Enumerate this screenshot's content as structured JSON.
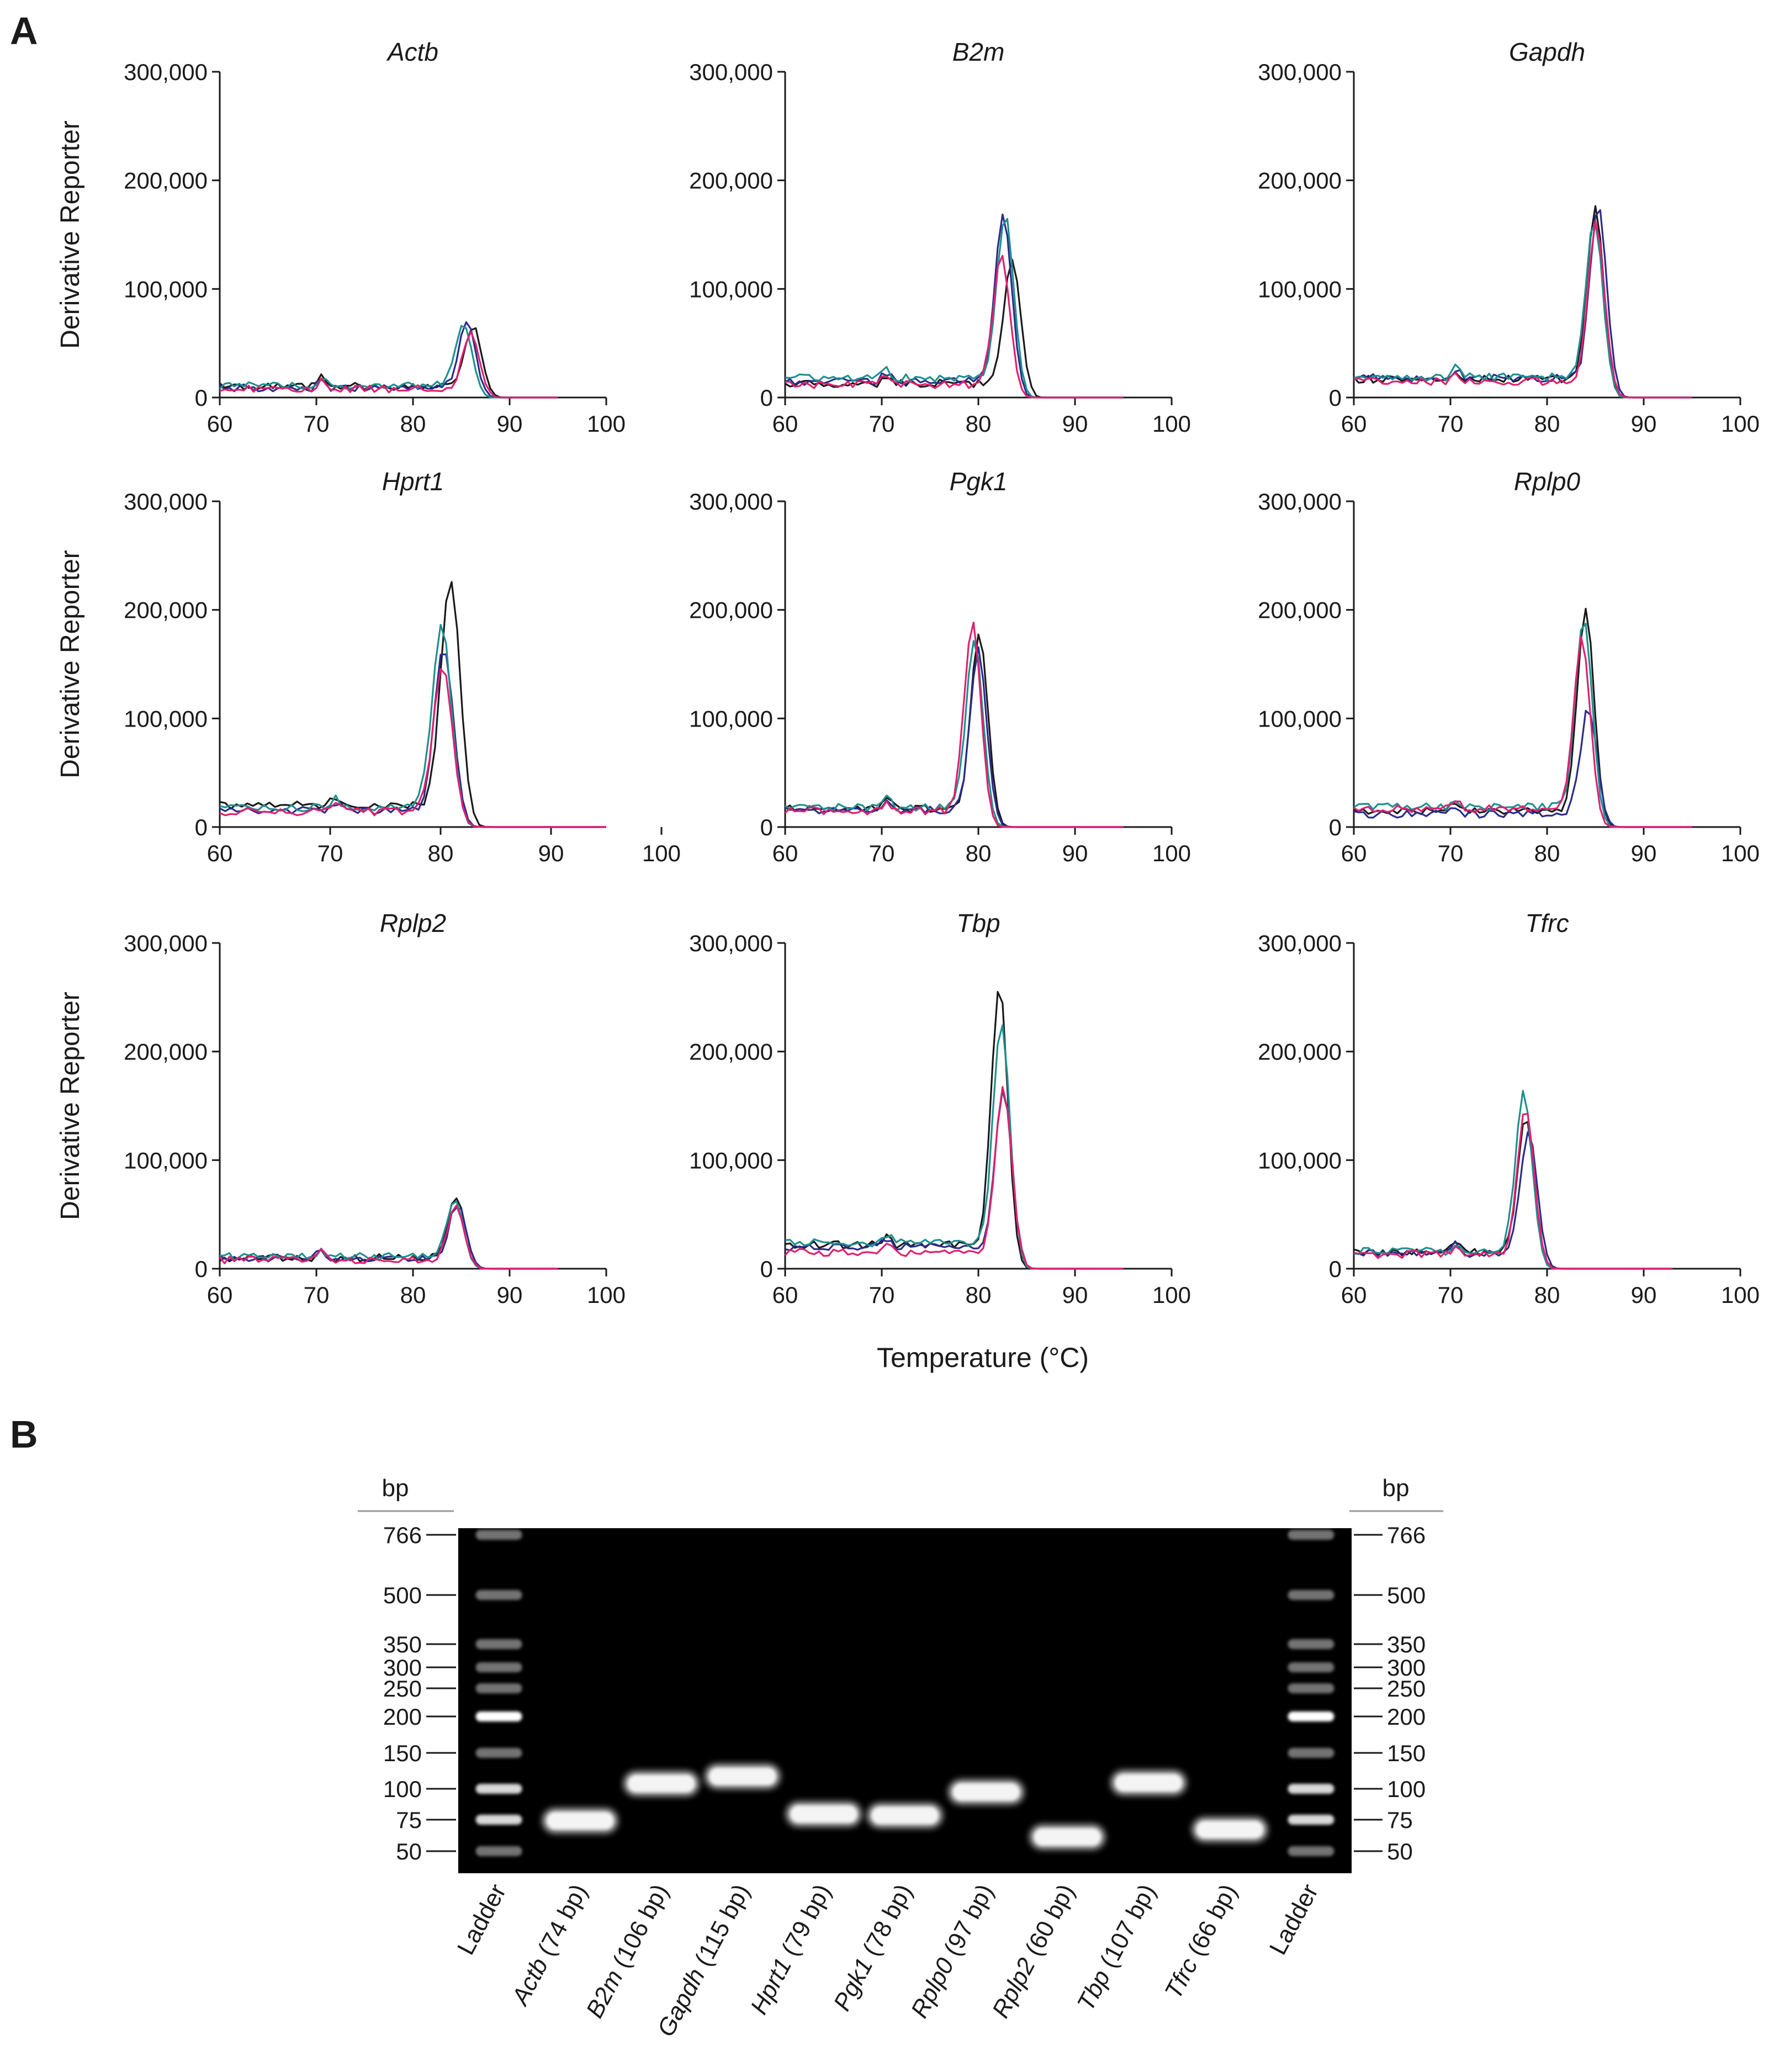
{
  "figure": {
    "panel_a_label": "A",
    "panel_b_label": "B"
  },
  "panel_a": {
    "ylabel": "Derivative  Reporter",
    "xlabel": "Temperature (°C)",
    "y_ticks": [
      "0",
      "100,000",
      "200,000",
      "300,000"
    ],
    "x_ticks": [
      "60",
      "70",
      "80",
      "90",
      "100"
    ],
    "series_colors": [
      "#1a1a1a",
      "#2b2b8a",
      "#1f8f8f",
      "#e0206e"
    ]
  },
  "chart_data": [
    {
      "type": "line",
      "title": "Actb",
      "xlim": [
        60,
        100
      ],
      "ylim": [
        0,
        300000
      ],
      "peak_x": [
        86.2,
        85.6,
        85.2,
        86.0
      ],
      "peak_y": [
        58000,
        62000,
        60000,
        52000
      ],
      "baseline": [
        10000,
        9000,
        11000,
        8000
      ],
      "end_x": 95
    },
    {
      "type": "line",
      "title": "B2m",
      "xlim": [
        60,
        100
      ],
      "ylim": [
        0,
        300000
      ],
      "peak_x": [
        83.5,
        82.6,
        82.8,
        82.4
      ],
      "peak_y": [
        118000,
        158000,
        155000,
        120000
      ],
      "baseline": [
        13000,
        15000,
        18000,
        12000
      ],
      "end_x": 95
    },
    {
      "type": "line",
      "title": "Gapdh",
      "xlim": [
        60,
        100
      ],
      "ylim": [
        0,
        300000
      ],
      "peak_x": [
        85.0,
        85.3,
        84.9,
        85.1
      ],
      "peak_y": [
        160000,
        165000,
        150000,
        148000
      ],
      "baseline": [
        17000,
        18000,
        19000,
        15000
      ],
      "end_x": 95
    },
    {
      "type": "line",
      "title": "Hprt1",
      "xlim": [
        60,
        95
      ],
      "ylim": [
        0,
        300000
      ],
      "peak_x": [
        80.9,
        80.3,
        80.1,
        80.2
      ],
      "peak_y": [
        215000,
        155000,
        175000,
        140000
      ],
      "baseline": [
        20000,
        15000,
        18000,
        14000
      ],
      "end_x": 95
    },
    {
      "type": "line",
      "title": "Pgk1",
      "xlim": [
        60,
        100
      ],
      "ylim": [
        0,
        300000
      ],
      "peak_x": [
        80.1,
        80.0,
        79.6,
        79.4
      ],
      "peak_y": [
        168000,
        150000,
        160000,
        178000
      ],
      "baseline": [
        17000,
        16000,
        18000,
        15000
      ],
      "end_x": 95
    },
    {
      "type": "line",
      "title": "Rplp0",
      "xlim": [
        60,
        100
      ],
      "ylim": [
        0,
        300000
      ],
      "peak_x": [
        84.0,
        84.3,
        83.8,
        83.6
      ],
      "peak_y": [
        192000,
        100000,
        178000,
        160000
      ],
      "baseline": [
        15000,
        12000,
        19000,
        17000
      ],
      "end_x": 95
    },
    {
      "type": "line",
      "title": "Rplp2",
      "xlim": [
        60,
        100
      ],
      "ylim": [
        0,
        300000
      ],
      "peak_x": [
        84.5,
        84.6,
        84.3,
        84.4
      ],
      "peak_y": [
        58000,
        52000,
        55000,
        50000
      ],
      "baseline": [
        10000,
        9000,
        11000,
        8000
      ],
      "end_x": 95
    },
    {
      "type": "line",
      "title": "Tbp",
      "xlim": [
        60,
        100
      ],
      "ylim": [
        0,
        300000
      ],
      "peak_x": [
        82.2,
        82.6,
        82.4,
        82.6
      ],
      "peak_y": [
        242000,
        150000,
        210000,
        155000
      ],
      "baseline": [
        22000,
        20000,
        24000,
        15000
      ],
      "end_x": 95
    },
    {
      "type": "line",
      "title": "Tfrc",
      "xlim": [
        60,
        100
      ],
      "ylim": [
        0,
        300000
      ],
      "peak_x": [
        77.8,
        78.1,
        77.6,
        77.8
      ],
      "peak_y": [
        125000,
        115000,
        150000,
        140000
      ],
      "baseline": [
        15000,
        14000,
        16000,
        13000
      ],
      "end_x": 93
    }
  ],
  "panel_b": {
    "bp_header_left": "bp",
    "bp_header_right": "bp",
    "ladder_left": [
      {
        "label": "766",
        "bp": 766
      },
      {
        "label": "500",
        "bp": 500
      },
      {
        "label": "350",
        "bp": 350
      },
      {
        "label": "300",
        "bp": 300
      },
      {
        "label": "250",
        "bp": 250
      },
      {
        "label": "200",
        "bp": 200
      },
      {
        "label": "150",
        "bp": 150
      },
      {
        "label": "100",
        "bp": 100
      },
      {
        "label": "75",
        "bp": 75
      },
      {
        "label": "50",
        "bp": 50
      }
    ],
    "ladder_right": [
      {
        "label": "766",
        "bp": 766
      },
      {
        "label": "500",
        "bp": 500
      },
      {
        "label": "350",
        "bp": 350
      },
      {
        "label": "300",
        "bp": 300
      },
      {
        "label": "250",
        "bp": 250
      },
      {
        "label": "200",
        "bp": 200
      },
      {
        "label": "150",
        "bp": 150
      },
      {
        "label": "100",
        "bp": 100
      },
      {
        "label": "75",
        "bp": 75
      },
      {
        "label": "50",
        "bp": 50
      }
    ],
    "lanes": [
      {
        "gene": "Ladder",
        "size": ""
      },
      {
        "gene": "Actb",
        "size": "(74 bp)",
        "bp": 74
      },
      {
        "gene": "B2m",
        "size": "(106 bp)",
        "bp": 106
      },
      {
        "gene": "Gapdh",
        "size": "(115 bp)",
        "bp": 115
      },
      {
        "gene": "Hprt1",
        "size": "(79 bp)",
        "bp": 79
      },
      {
        "gene": "Pgk1",
        "size": "(78 bp)",
        "bp": 78
      },
      {
        "gene": "Rplp0",
        "size": "(97 bp)",
        "bp": 97
      },
      {
        "gene": "Rplp2",
        "size": "(60 bp)",
        "bp": 60
      },
      {
        "gene": "Tbp",
        "size": "(107 bp)",
        "bp": 107
      },
      {
        "gene": "Tfrc",
        "size": "(66 bp)",
        "bp": 66
      },
      {
        "gene": "Ladder",
        "size": ""
      }
    ]
  }
}
